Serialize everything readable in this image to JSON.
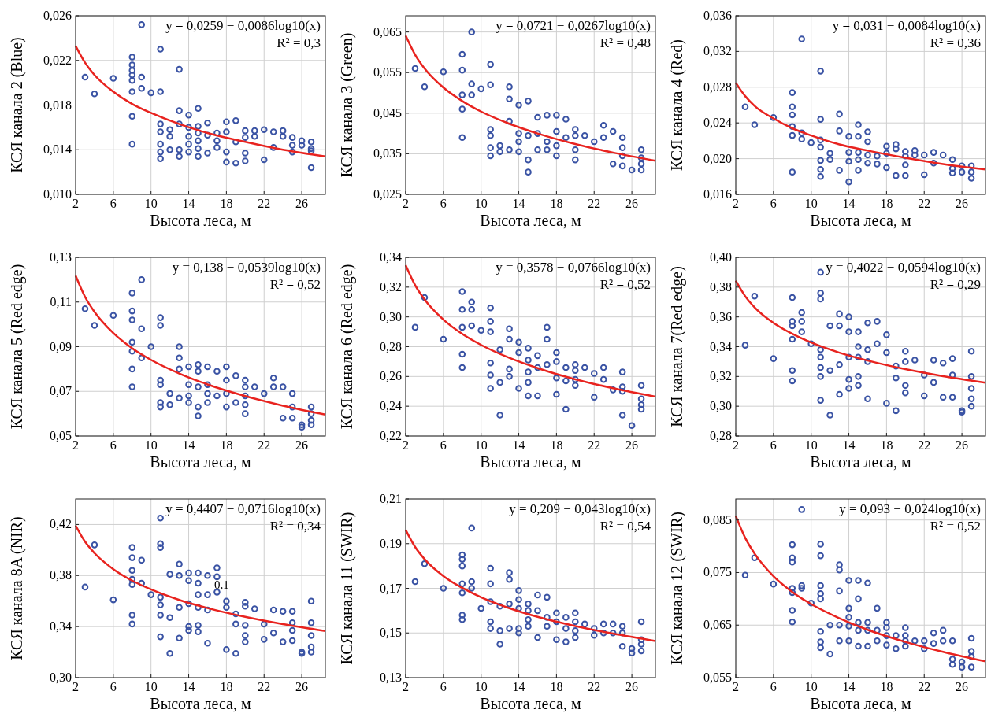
{
  "chart_data": [
    {
      "type": "scatter",
      "xlabel": "Высота леса, м",
      "ylabel": "КСЯ канала 2 (Blue)",
      "xlim": [
        2,
        28.5
      ],
      "xticks": [
        2,
        6,
        10,
        14,
        18,
        22,
        26
      ],
      "ylim": [
        0.01,
        0.026
      ],
      "yticks": [
        {
          "value": 0.01,
          "label": "0,010"
        },
        {
          "value": 0.014,
          "label": "0,014"
        },
        {
          "value": 0.018,
          "label": "0,018"
        },
        {
          "value": 0.022,
          "label": "0,022"
        },
        {
          "value": 0.026,
          "label": "0,026"
        }
      ],
      "grid": true,
      "marker": "circle",
      "annotations": [
        "y = 0,0259 − 0,0086log10(x)",
        "R² = 0,3"
      ],
      "series": [
        {
          "color": "#3a53a4",
          "x": [
            3,
            4,
            6,
            8,
            8,
            8,
            8,
            8,
            8,
            8,
            8,
            9,
            9,
            9,
            10,
            11,
            11,
            11,
            11,
            11,
            11,
            11,
            12,
            12,
            12,
            13,
            13,
            13,
            13,
            13,
            14,
            14,
            14,
            14,
            14,
            15,
            15,
            15,
            15,
            15,
            15,
            16,
            16,
            16,
            17,
            17,
            17,
            18,
            18,
            18,
            18,
            19,
            19,
            19,
            20,
            20,
            20,
            20,
            21,
            21,
            22,
            22,
            23,
            23,
            24,
            24,
            25,
            25,
            25,
            26,
            26,
            27,
            27,
            27,
            27
          ],
          "values": [
            0.0205,
            0.019,
            0.0204,
            0.0145,
            0.017,
            0.0192,
            0.0202,
            0.0207,
            0.0211,
            0.0223,
            0.0216,
            0.0252,
            0.0205,
            0.0195,
            0.0191,
            0.023,
            0.0192,
            0.0163,
            0.0156,
            0.0145,
            0.0138,
            0.0132,
            0.0158,
            0.0152,
            0.014,
            0.0212,
            0.0175,
            0.0163,
            0.014,
            0.0134,
            0.0171,
            0.016,
            0.0152,
            0.0145,
            0.0138,
            0.0177,
            0.0161,
            0.0155,
            0.0148,
            0.0141,
            0.0134,
            0.0164,
            0.0153,
            0.0137,
            0.0155,
            0.0148,
            0.0142,
            0.0165,
            0.0156,
            0.0138,
            0.0129,
            0.0166,
            0.0147,
            0.0128,
            0.0157,
            0.0151,
            0.0137,
            0.013,
            0.0157,
            0.0152,
            0.0158,
            0.0131,
            0.0156,
            0.0142,
            0.0157,
            0.0152,
            0.0151,
            0.0144,
            0.0138,
            0.0148,
            0.0144,
            0.0147,
            0.0139,
            0.0124,
            0.0141
          ]
        },
        {
          "type": "line",
          "color": "#e8231f",
          "marker": "none",
          "x": [
            2,
            3,
            4,
            6,
            8,
            10,
            13,
            16,
            20,
            24,
            28.5
          ],
          "values": [
            0.0233,
            0.0218,
            0.0207,
            0.0192,
            0.0181,
            0.0173,
            0.0163,
            0.0155,
            0.0147,
            0.014,
            0.0134
          ]
        }
      ]
    },
    {
      "type": "scatter",
      "xlabel": "Высота леса, м",
      "ylabel": "КСЯ канала 3 (Green)",
      "xlim": [
        2,
        28.5
      ],
      "xticks": [
        2,
        6,
        10,
        14,
        18,
        22,
        26
      ],
      "ylim": [
        0.025,
        0.069
      ],
      "yticks": [
        {
          "value": 0.025,
          "label": "0,025"
        },
        {
          "value": 0.035,
          "label": "0,035"
        },
        {
          "value": 0.045,
          "label": "0,045"
        },
        {
          "value": 0.055,
          "label": "0,055"
        },
        {
          "value": 0.065,
          "label": "0,065"
        }
      ],
      "grid": true,
      "marker": "circle",
      "annotations": [
        "y = 0,0721 − 0,0267log10(x)",
        "R² = 0,48"
      ],
      "series": [
        {
          "color": "#3a53a4",
          "x": [
            3,
            4,
            6,
            8,
            8,
            8,
            8,
            8,
            9,
            9,
            9,
            10,
            11,
            11,
            11,
            11,
            11,
            11,
            12,
            12,
            13,
            13,
            13,
            13,
            14,
            14,
            14,
            14,
            15,
            15,
            15,
            15,
            16,
            16,
            16,
            17,
            17,
            17,
            18,
            18,
            18,
            18,
            19,
            19,
            20,
            20,
            20,
            20,
            21,
            22,
            23,
            23,
            24,
            24,
            25,
            25,
            25,
            25,
            26,
            27,
            27,
            27,
            27
          ],
          "values": [
            0.056,
            0.0515,
            0.0552,
            0.0595,
            0.0556,
            0.0495,
            0.046,
            0.039,
            0.065,
            0.0522,
            0.0495,
            0.051,
            0.057,
            0.052,
            0.041,
            0.0395,
            0.0365,
            0.0345,
            0.037,
            0.0355,
            0.0515,
            0.0485,
            0.043,
            0.036,
            0.047,
            0.04,
            0.038,
            0.0355,
            0.048,
            0.0395,
            0.0335,
            0.0305,
            0.044,
            0.04,
            0.036,
            0.0445,
            0.038,
            0.036,
            0.0445,
            0.0405,
            0.037,
            0.0345,
            0.0435,
            0.039,
            0.041,
            0.0395,
            0.036,
            0.0335,
            0.0395,
            0.038,
            0.042,
            0.039,
            0.0405,
            0.0325,
            0.039,
            0.0365,
            0.0345,
            0.032,
            0.031,
            0.036,
            0.034,
            0.0325,
            0.031
          ]
        },
        {
          "type": "line",
          "color": "#e8231f",
          "marker": "none",
          "x": [
            2,
            3,
            4,
            6,
            8,
            10,
            13,
            16,
            20,
            24,
            28.5
          ],
          "values": [
            0.0641,
            0.0594,
            0.056,
            0.0513,
            0.048,
            0.0454,
            0.0424,
            0.04,
            0.0374,
            0.0353,
            0.0333
          ]
        }
      ]
    },
    {
      "type": "scatter",
      "xlabel": "Высота леса, м",
      "ylabel": "КСЯ канала 4 (Red)",
      "xlim": [
        2,
        28.5
      ],
      "xticks": [
        2,
        6,
        10,
        14,
        18,
        22,
        26
      ],
      "ylim": [
        0.016,
        0.036
      ],
      "yticks": [
        {
          "value": 0.016,
          "label": "0,016"
        },
        {
          "value": 0.02,
          "label": "0,020"
        },
        {
          "value": 0.024,
          "label": "0,024"
        },
        {
          "value": 0.028,
          "label": "0,028"
        },
        {
          "value": 0.032,
          "label": "0,032"
        },
        {
          "value": 0.036,
          "label": "0,036"
        }
      ],
      "grid": true,
      "marker": "circle",
      "annotations": [
        "y = 0,031 − 0,0084log10(x)",
        "R² = 0,36"
      ],
      "series": [
        {
          "color": "#3a53a4",
          "x": [
            3,
            4,
            6,
            8,
            8,
            8,
            8,
            8,
            8,
            9,
            9,
            9,
            10,
            11,
            11,
            11,
            11,
            11,
            11,
            11,
            12,
            12,
            13,
            13,
            13,
            14,
            14,
            14,
            14,
            15,
            15,
            15,
            15,
            15,
            16,
            16,
            16,
            16,
            17,
            17,
            18,
            18,
            18,
            19,
            19,
            19,
            20,
            20,
            20,
            20,
            21,
            21,
            22,
            22,
            23,
            23,
            24,
            25,
            25,
            25,
            26,
            26,
            27,
            27,
            27
          ],
          "values": [
            0.0258,
            0.0238,
            0.0246,
            0.0274,
            0.0258,
            0.0249,
            0.0236,
            0.0226,
            0.0185,
            0.0334,
            0.0229,
            0.0222,
            0.0218,
            0.0298,
            0.0244,
            0.0221,
            0.0213,
            0.0198,
            0.0188,
            0.018,
            0.0206,
            0.0199,
            0.025,
            0.0231,
            0.0187,
            0.0225,
            0.0207,
            0.0197,
            0.0174,
            0.0238,
            0.0225,
            0.0207,
            0.0199,
            0.0187,
            0.023,
            0.0219,
            0.0204,
            0.0195,
            0.0203,
            0.0194,
            0.0214,
            0.0206,
            0.019,
            0.0216,
            0.0211,
            0.0181,
            0.0208,
            0.0203,
            0.0193,
            0.0181,
            0.0209,
            0.0204,
            0.0204,
            0.0182,
            0.0207,
            0.0195,
            0.0204,
            0.0199,
            0.0189,
            0.0184,
            0.0192,
            0.0185,
            0.0192,
            0.0185,
            0.0178
          ]
        },
        {
          "type": "line",
          "color": "#e8231f",
          "marker": "none",
          "x": [
            2,
            3,
            4,
            6,
            8,
            10,
            13,
            16,
            20,
            24,
            28.5
          ],
          "values": [
            0.0285,
            0.027,
            0.0259,
            0.0245,
            0.0234,
            0.0226,
            0.0216,
            0.0209,
            0.0201,
            0.0194,
            0.0188
          ]
        }
      ]
    },
    {
      "type": "scatter",
      "xlabel": "Высота леса, м",
      "ylabel": "КСЯ канала 5 (Red edge)",
      "xlim": [
        2,
        28.5
      ],
      "xticks": [
        2,
        6,
        10,
        14,
        18,
        22,
        26
      ],
      "ylim": [
        0.05,
        0.13
      ],
      "yticks": [
        {
          "value": 0.05,
          "label": "0,05"
        },
        {
          "value": 0.07,
          "label": "0,07"
        },
        {
          "value": 0.09,
          "label": "0,09"
        },
        {
          "value": 0.11,
          "label": "0,11"
        },
        {
          "value": 0.13,
          "label": "0,13"
        }
      ],
      "grid": true,
      "marker": "circle",
      "annotations": [
        "y = 0,138 − 0,0539log10(x)",
        "R² = 0,52"
      ],
      "series": [
        {
          "color": "#3a53a4",
          "x": [
            3,
            4,
            6,
            8,
            8,
            8,
            8,
            8,
            8,
            8,
            9,
            9,
            9,
            10,
            11,
            11,
            11,
            11,
            11,
            11,
            12,
            12,
            13,
            13,
            13,
            13,
            14,
            14,
            14,
            14,
            15,
            15,
            15,
            15,
            15,
            16,
            16,
            16,
            16,
            17,
            17,
            18,
            18,
            18,
            18,
            19,
            19,
            20,
            20,
            20,
            20,
            20,
            21,
            22,
            23,
            23,
            24,
            24,
            25,
            25,
            25,
            26,
            26,
            27,
            27,
            27,
            27
          ],
          "values": [
            0.107,
            0.0995,
            0.104,
            0.114,
            0.106,
            0.102,
            0.092,
            0.088,
            0.08,
            0.072,
            0.12,
            0.098,
            0.085,
            0.09,
            0.103,
            0.0995,
            0.075,
            0.073,
            0.065,
            0.063,
            0.069,
            0.064,
            0.09,
            0.085,
            0.08,
            0.067,
            0.081,
            0.073,
            0.068,
            0.065,
            0.082,
            0.079,
            0.072,
            0.063,
            0.059,
            0.081,
            0.073,
            0.069,
            0.065,
            0.079,
            0.068,
            0.081,
            0.075,
            0.069,
            0.063,
            0.077,
            0.065,
            0.075,
            0.072,
            0.068,
            0.064,
            0.06,
            0.072,
            0.069,
            0.076,
            0.072,
            0.072,
            0.058,
            0.069,
            0.063,
            0.058,
            0.055,
            0.054,
            0.063,
            0.06,
            0.057,
            0.055
          ]
        },
        {
          "type": "line",
          "color": "#e8231f",
          "marker": "none",
          "x": [
            2,
            3,
            4,
            6,
            8,
            10,
            13,
            16,
            20,
            24,
            28.5
          ],
          "values": [
            0.1218,
            0.1123,
            0.1056,
            0.0961,
            0.0893,
            0.0841,
            0.078,
            0.0731,
            0.0679,
            0.0636,
            0.0596
          ]
        }
      ]
    },
    {
      "type": "scatter",
      "xlabel": "Высота леса, м",
      "ylabel": "КСЯ канала 6 (Red edge)",
      "xlim": [
        2,
        28.5
      ],
      "xticks": [
        2,
        6,
        10,
        14,
        18,
        22,
        26
      ],
      "ylim": [
        0.22,
        0.34
      ],
      "yticks": [
        {
          "value": 0.22,
          "label": "0,22"
        },
        {
          "value": 0.24,
          "label": "0,24"
        },
        {
          "value": 0.26,
          "label": "0,26"
        },
        {
          "value": 0.28,
          "label": "0,28"
        },
        {
          "value": 0.3,
          "label": "0,30"
        },
        {
          "value": 0.32,
          "label": "0,32"
        },
        {
          "value": 0.34,
          "label": "0,34"
        }
      ],
      "grid": true,
      "marker": "circle",
      "annotations": [
        "y = 0,3578 − 0,0766log10(x)",
        "R² = 0,52"
      ],
      "series": [
        {
          "color": "#3a53a4",
          "x": [
            3,
            4,
            6,
            8,
            8,
            8,
            8,
            8,
            9,
            9,
            9,
            10,
            11,
            11,
            11,
            11,
            11,
            11,
            12,
            12,
            12,
            13,
            13,
            13,
            13,
            14,
            14,
            14,
            15,
            15,
            15,
            15,
            15,
            16,
            16,
            16,
            17,
            17,
            17,
            18,
            18,
            18,
            18,
            19,
            19,
            19,
            20,
            20,
            20,
            20,
            21,
            22,
            22,
            23,
            23,
            24,
            25,
            25,
            25,
            25,
            26,
            27,
            27,
            27,
            27
          ],
          "values": [
            0.293,
            0.313,
            0.285,
            0.317,
            0.305,
            0.293,
            0.275,
            0.266,
            0.31,
            0.305,
            0.294,
            0.291,
            0.306,
            0.297,
            0.29,
            0.269,
            0.261,
            0.252,
            0.278,
            0.256,
            0.234,
            0.292,
            0.285,
            0.265,
            0.26,
            0.283,
            0.276,
            0.252,
            0.279,
            0.271,
            0.263,
            0.256,
            0.247,
            0.274,
            0.266,
            0.247,
            0.293,
            0.285,
            0.268,
            0.276,
            0.27,
            0.259,
            0.248,
            0.266,
            0.257,
            0.238,
            0.268,
            0.264,
            0.258,
            0.254,
            0.266,
            0.262,
            0.246,
            0.266,
            0.258,
            0.251,
            0.263,
            0.253,
            0.25,
            0.234,
            0.227,
            0.254,
            0.245,
            0.241,
            0.238
          ]
        },
        {
          "type": "line",
          "color": "#e8231f",
          "marker": "none",
          "x": [
            2,
            3,
            4,
            6,
            8,
            10,
            13,
            16,
            20,
            24,
            28.5
          ],
          "values": [
            0.3347,
            0.3213,
            0.3117,
            0.2982,
            0.2886,
            0.2812,
            0.2725,
            0.2656,
            0.2581,
            0.2521,
            0.2464
          ]
        }
      ]
    },
    {
      "type": "scatter",
      "xlabel": "Высота леса, м",
      "ylabel": "КСЯ канала 7(Red edge)",
      "xlim": [
        2,
        28.5
      ],
      "xticks": [
        2,
        6,
        10,
        14,
        18,
        22,
        26
      ],
      "ylim": [
        0.28,
        0.4
      ],
      "yticks": [
        {
          "value": 0.28,
          "label": "0,28"
        },
        {
          "value": 0.3,
          "label": "0,30"
        },
        {
          "value": 0.32,
          "label": "0,32"
        },
        {
          "value": 0.34,
          "label": "0,34"
        },
        {
          "value": 0.36,
          "label": "0,36"
        },
        {
          "value": 0.38,
          "label": "0,38"
        },
        {
          "value": 0.4,
          "label": "0,40"
        }
      ],
      "grid": true,
      "marker": "circle",
      "annotations": [
        "y = 0,4022 − 0,0594log10(x)",
        "R² = 0,29"
      ],
      "series": [
        {
          "color": "#3a53a4",
          "x": [
            3,
            4,
            6,
            8,
            8,
            8,
            8,
            8,
            8,
            9,
            9,
            9,
            10,
            11,
            11,
            11,
            11,
            11,
            11,
            11,
            11,
            12,
            12,
            12,
            13,
            13,
            13,
            13,
            14,
            14,
            14,
            14,
            14,
            15,
            15,
            15,
            15,
            15,
            16,
            16,
            16,
            16,
            17,
            17,
            18,
            18,
            18,
            19,
            19,
            19,
            20,
            20,
            20,
            20,
            21,
            22,
            22,
            23,
            23,
            24,
            24,
            25,
            25,
            25,
            26,
            26,
            27,
            27,
            27,
            27,
            27
          ],
          "values": [
            0.341,
            0.374,
            0.332,
            0.373,
            0.357,
            0.354,
            0.345,
            0.324,
            0.317,
            0.363,
            0.357,
            0.35,
            0.342,
            0.39,
            0.376,
            0.372,
            0.338,
            0.333,
            0.326,
            0.32,
            0.304,
            0.354,
            0.324,
            0.294,
            0.362,
            0.354,
            0.328,
            0.308,
            0.36,
            0.35,
            0.333,
            0.318,
            0.312,
            0.35,
            0.34,
            0.333,
            0.32,
            0.314,
            0.356,
            0.338,
            0.33,
            0.305,
            0.357,
            0.342,
            0.348,
            0.336,
            0.302,
            0.327,
            0.319,
            0.297,
            0.337,
            0.33,
            0.314,
            0.309,
            0.331,
            0.321,
            0.307,
            0.331,
            0.316,
            0.329,
            0.306,
            0.332,
            0.321,
            0.306,
            0.297,
            0.296,
            0.337,
            0.32,
            0.312,
            0.305,
            0.3
          ]
        },
        {
          "type": "line",
          "color": "#e8231f",
          "marker": "none",
          "x": [
            2,
            3,
            4,
            6,
            8,
            10,
            13,
            16,
            20,
            24,
            28.5
          ],
          "values": [
            0.3843,
            0.3739,
            0.3664,
            0.356,
            0.3486,
            0.3428,
            0.336,
            0.3307,
            0.3249,
            0.3202,
            0.3158
          ]
        }
      ]
    },
    {
      "type": "scatter",
      "xlabel": "Высота леса, м",
      "ylabel": "КСЯ канала 8A (NIR)",
      "xlim": [
        2,
        28.5
      ],
      "xticks": [
        2,
        6,
        10,
        14,
        18,
        22,
        26
      ],
      "ylim": [
        0.3,
        0.44
      ],
      "yticks": [
        {
          "value": 0.3,
          "label": "0,30"
        },
        {
          "value": 0.34,
          "label": "0,34"
        },
        {
          "value": 0.38,
          "label": "0,38"
        },
        {
          "value": 0.42,
          "label": "0,42"
        }
      ],
      "grid": true,
      "marker": "circle",
      "annotations": [
        "y = 0,4407 − 0,0716log10(x)",
        "R² = 0,34",
        {
          "text": "0,1",
          "x": 17.5,
          "y": 0.37
        }
      ],
      "series": [
        {
          "color": "#3a53a4",
          "x": [
            3,
            4,
            6,
            8,
            8,
            8,
            8,
            8,
            8,
            8,
            9,
            9,
            10,
            11,
            11,
            11,
            11,
            11,
            11,
            11,
            12,
            12,
            12,
            13,
            13,
            13,
            13,
            14,
            14,
            14,
            14,
            14,
            15,
            15,
            15,
            15,
            15,
            15,
            16,
            16,
            16,
            16,
            17,
            17,
            17,
            18,
            18,
            18,
            19,
            19,
            19,
            20,
            20,
            20,
            20,
            20,
            21,
            22,
            22,
            23,
            23,
            24,
            24,
            25,
            25,
            25,
            25,
            26,
            26,
            27,
            27,
            27,
            27,
            27
          ],
          "values": [
            0.371,
            0.404,
            0.361,
            0.402,
            0.394,
            0.384,
            0.377,
            0.373,
            0.349,
            0.342,
            0.392,
            0.374,
            0.365,
            0.425,
            0.405,
            0.402,
            0.363,
            0.357,
            0.349,
            0.332,
            0.381,
            0.347,
            0.319,
            0.389,
            0.38,
            0.355,
            0.331,
            0.382,
            0.376,
            0.358,
            0.34,
            0.337,
            0.382,
            0.374,
            0.365,
            0.355,
            0.341,
            0.336,
            0.38,
            0.365,
            0.353,
            0.327,
            0.386,
            0.379,
            0.367,
            0.36,
            0.355,
            0.322,
            0.35,
            0.342,
            0.319,
            0.359,
            0.356,
            0.341,
            0.333,
            0.328,
            0.354,
            0.342,
            0.33,
            0.353,
            0.335,
            0.352,
            0.328,
            0.352,
            0.343,
            0.337,
            0.329,
            0.319,
            0.32,
            0.36,
            0.343,
            0.333,
            0.324,
            0.32
          ]
        },
        {
          "type": "line",
          "color": "#e8231f",
          "marker": "none",
          "x": [
            2,
            3,
            4,
            6,
            8,
            10,
            13,
            16,
            20,
            24,
            28.5
          ],
          "values": [
            0.4192,
            0.4065,
            0.3976,
            0.385,
            0.376,
            0.3691,
            0.3609,
            0.3545,
            0.3476,
            0.3419,
            0.3365
          ]
        }
      ]
    },
    {
      "type": "scatter",
      "xlabel": "Высота леса, м",
      "ylabel": "КСЯ канала 11 (SWIR)",
      "xlim": [
        2,
        28.5
      ],
      "xticks": [
        2,
        6,
        10,
        14,
        18,
        22,
        26
      ],
      "ylim": [
        0.13,
        0.21
      ],
      "yticks": [
        {
          "value": 0.13,
          "label": "0,13"
        },
        {
          "value": 0.15,
          "label": "0,15"
        },
        {
          "value": 0.17,
          "label": "0,17"
        },
        {
          "value": 0.19,
          "label": "0,19"
        },
        {
          "value": 0.21,
          "label": "0,21"
        }
      ],
      "grid": true,
      "marker": "circle",
      "annotations": [
        "y = 0,209 − 0,043log10(x)",
        "R² = 0,54"
      ],
      "series": [
        {
          "color": "#3a53a4",
          "x": [
            3,
            4,
            6,
            8,
            8,
            8,
            8,
            8,
            8,
            8,
            9,
            9,
            9,
            10,
            11,
            11,
            11,
            11,
            11,
            12,
            12,
            12,
            13,
            13,
            13,
            13,
            14,
            14,
            14,
            14,
            14,
            15,
            15,
            15,
            15,
            16,
            16,
            16,
            17,
            17,
            17,
            18,
            18,
            18,
            19,
            19,
            19,
            20,
            20,
            20,
            20,
            21,
            22,
            22,
            23,
            23,
            24,
            24,
            25,
            25,
            25,
            26,
            26,
            27,
            27,
            27,
            27
          ],
          "values": [
            0.173,
            0.181,
            0.17,
            0.185,
            0.183,
            0.18,
            0.172,
            0.168,
            0.158,
            0.156,
            0.197,
            0.173,
            0.17,
            0.161,
            0.179,
            0.172,
            0.164,
            0.155,
            0.152,
            0.162,
            0.151,
            0.145,
            0.177,
            0.174,
            0.163,
            0.152,
            0.169,
            0.165,
            0.161,
            0.152,
            0.15,
            0.163,
            0.16,
            0.156,
            0.153,
            0.167,
            0.16,
            0.148,
            0.166,
            0.157,
            0.153,
            0.159,
            0.155,
            0.147,
            0.157,
            0.152,
            0.146,
            0.159,
            0.155,
            0.151,
            0.148,
            0.154,
            0.152,
            0.149,
            0.154,
            0.15,
            0.154,
            0.15,
            0.153,
            0.15,
            0.144,
            0.143,
            0.141,
            0.155,
            0.147,
            0.145,
            0.142
          ]
        },
        {
          "type": "line",
          "color": "#e8231f",
          "marker": "none",
          "x": [
            2,
            3,
            4,
            6,
            8,
            10,
            13,
            16,
            20,
            24,
            28.5
          ],
          "values": [
            0.1961,
            0.1885,
            0.1831,
            0.1755,
            0.1702,
            0.166,
            0.1611,
            0.1572,
            0.1531,
            0.1497,
            0.1464
          ]
        }
      ]
    },
    {
      "type": "scatter",
      "xlabel": "Высота леса, м",
      "ylabel": "КСЯ канала 12 (SWIR)",
      "xlim": [
        2,
        28.5
      ],
      "xticks": [
        2,
        6,
        10,
        14,
        18,
        22,
        26
      ],
      "ylim": [
        0.055,
        0.089
      ],
      "yticks": [
        {
          "value": 0.055,
          "label": "0,055"
        },
        {
          "value": 0.065,
          "label": "0,065"
        },
        {
          "value": 0.075,
          "label": "0,075"
        },
        {
          "value": 0.085,
          "label": "0,085"
        }
      ],
      "grid": true,
      "marker": "circle",
      "annotations": [
        "y = 0,093 − 0,024log10(x)",
        "R² = 0,52"
      ],
      "series": [
        {
          "color": "#3a53a4",
          "x": [
            3,
            4,
            6,
            8,
            8,
            8,
            8,
            8,
            8,
            8,
            9,
            9,
            9,
            10,
            11,
            11,
            11,
            11,
            11,
            11,
            11,
            11,
            12,
            12,
            13,
            13,
            13,
            13,
            13,
            14,
            14,
            14,
            14,
            14,
            15,
            15,
            15,
            15,
            15,
            16,
            16,
            16,
            16,
            17,
            17,
            17,
            18,
            18,
            18,
            18,
            19,
            19,
            20,
            20,
            20,
            20,
            21,
            22,
            22,
            23,
            23,
            24,
            24,
            25,
            25,
            25,
            26,
            26,
            27,
            27,
            27,
            27
          ],
          "values": [
            0.0745,
            0.0778,
            0.0728,
            0.0803,
            0.0778,
            0.077,
            0.072,
            0.0712,
            0.0678,
            0.0656,
            0.087,
            0.0725,
            0.072,
            0.0692,
            0.0804,
            0.0782,
            0.0725,
            0.071,
            0.07,
            0.0638,
            0.0618,
            0.0607,
            0.065,
            0.0595,
            0.0765,
            0.0755,
            0.0715,
            0.065,
            0.062,
            0.0735,
            0.0682,
            0.0665,
            0.0648,
            0.062,
            0.0735,
            0.07,
            0.0655,
            0.064,
            0.061,
            0.073,
            0.0655,
            0.064,
            0.061,
            0.0682,
            0.064,
            0.062,
            0.0655,
            0.0645,
            0.063,
            0.0612,
            0.063,
            0.0605,
            0.0645,
            0.063,
            0.062,
            0.061,
            0.062,
            0.062,
            0.0605,
            0.0635,
            0.0615,
            0.064,
            0.062,
            0.062,
            0.0585,
            0.0575,
            0.058,
            0.057,
            0.0625,
            0.06,
            0.059,
            0.057
          ]
        },
        {
          "type": "line",
          "color": "#e8231f",
          "marker": "none",
          "x": [
            2,
            3,
            4,
            6,
            8,
            10,
            13,
            16,
            20,
            24,
            28.5
          ],
          "values": [
            0.0858,
            0.0816,
            0.0786,
            0.0743,
            0.0713,
            0.069,
            0.0663,
            0.0641,
            0.0618,
            0.0599,
            0.0581
          ]
        }
      ]
    }
  ]
}
